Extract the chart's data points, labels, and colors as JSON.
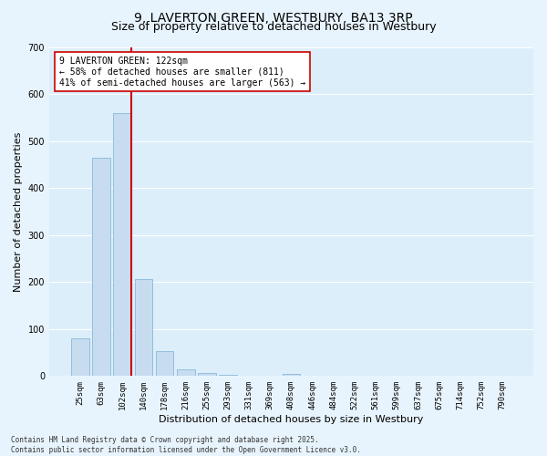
{
  "title": "9, LAVERTON GREEN, WESTBURY, BA13 3RP",
  "subtitle": "Size of property relative to detached houses in Westbury",
  "xlabel": "Distribution of detached houses by size in Westbury",
  "ylabel": "Number of detached properties",
  "bar_color": "#c8dcf0",
  "bar_edge_color": "#7aafd4",
  "background_color": "#dceefa",
  "fig_background_color": "#e8f4fd",
  "grid_color": "#ffffff",
  "vline_color": "#cc0000",
  "vline_index": 2,
  "categories": [
    "25sqm",
    "63sqm",
    "102sqm",
    "140sqm",
    "178sqm",
    "216sqm",
    "255sqm",
    "293sqm",
    "331sqm",
    "369sqm",
    "408sqm",
    "446sqm",
    "484sqm",
    "522sqm",
    "561sqm",
    "599sqm",
    "637sqm",
    "675sqm",
    "714sqm",
    "752sqm",
    "790sqm"
  ],
  "values": [
    80,
    465,
    560,
    207,
    53,
    14,
    7,
    2,
    0,
    0,
    5,
    0,
    0,
    0,
    0,
    0,
    0,
    0,
    0,
    0,
    0
  ],
  "ylim": [
    0,
    700
  ],
  "yticks": [
    0,
    100,
    200,
    300,
    400,
    500,
    600,
    700
  ],
  "annotation_text": "9 LAVERTON GREEN: 122sqm\n← 58% of detached houses are smaller (811)\n41% of semi-detached houses are larger (563) →",
  "annotation_box_color": "#ffffff",
  "annotation_box_edge": "#cc0000",
  "footer_line1": "Contains HM Land Registry data © Crown copyright and database right 2025.",
  "footer_line2": "Contains public sector information licensed under the Open Government Licence v3.0.",
  "title_fontsize": 10,
  "subtitle_fontsize": 9,
  "tick_fontsize": 6.5,
  "ylabel_fontsize": 8,
  "xlabel_fontsize": 8,
  "annotation_fontsize": 7,
  "footer_fontsize": 5.5
}
